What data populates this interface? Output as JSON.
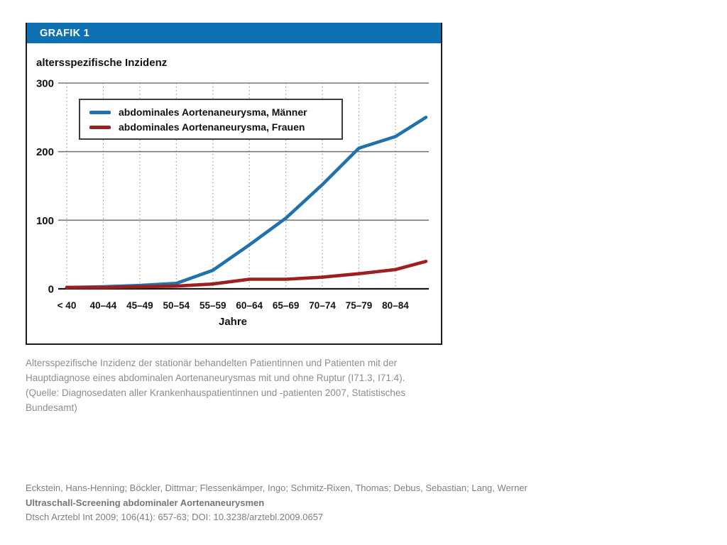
{
  "panel": {
    "header": "GRAFIK 1"
  },
  "colors": {
    "header_bg": "#0d71b3",
    "men_line": "#1f72ad",
    "women_line": "#9f1e1e",
    "gridline": "#787878",
    "dotted_grid": "#9a9a9a",
    "axis": "#1a1a1a"
  },
  "chart_data": {
    "type": "line",
    "title": "altersspezifische Inzidenz",
    "xlabel": "Jahre",
    "ylabel": "",
    "ylim": [
      0,
      300
    ],
    "y_ticks": [
      0,
      100,
      200,
      300
    ],
    "grid": true,
    "legend_position": "upper left",
    "categories": [
      "< 40",
      "40–44",
      "45–49",
      "50–54",
      "55–59",
      "60–64",
      "65–69",
      "70–74",
      "75–79",
      "80–84"
    ],
    "note": "both lines extend beyond the 80–84 gridline to the right edge of the plot; the 11th value is that unlabeled end point",
    "series": [
      {
        "name": "abdominales Aortenaneurysma, Männer",
        "color": "#1f72ad",
        "values": [
          2,
          3,
          5,
          8,
          27,
          64,
          103,
          152,
          205,
          222,
          250
        ]
      },
      {
        "name": "abdominales Aortenaneurysma, Frauen",
        "color": "#9f1e1e",
        "values": [
          2,
          2,
          3,
          4,
          7,
          14,
          14,
          17,
          22,
          28,
          40
        ]
      }
    ]
  },
  "caption_lines": [
    "Altersspezifische Inzidenz der stationär behandelten Patientinnen und Patienten mit der",
    "Hauptdiagnose eines abdominalen Aortenaneurysmas mit und ohne Ruptur (I71.3, I71.4).",
    "(Quelle: Diagnosedaten aller Krankenhauspatientinnen und -patienten 2007, Statistisches",
    "Bundesamt)"
  ],
  "citation": {
    "authors": "Eckstein, Hans-Henning; Böckler, Dittmar; Flessenkämper, Ingo; Schmitz-Rixen, Thomas; Debus, Sebastian; Lang, Werner",
    "title": "Ultraschall-Screening abdominaler Aortenaneurysmen",
    "reference": "Dtsch Arztebl Int 2009; 106(41): 657-63; DOI: 10.3238/arztebl.2009.0657"
  }
}
